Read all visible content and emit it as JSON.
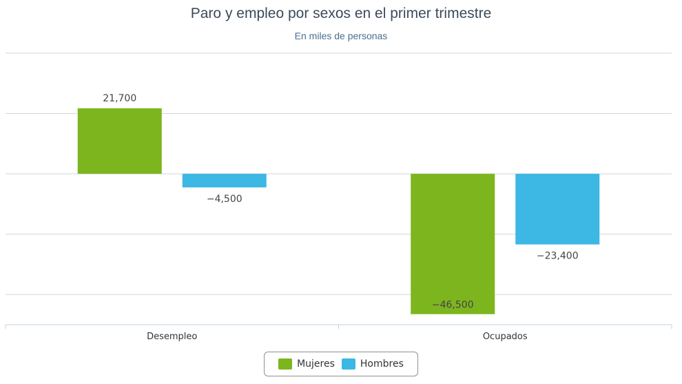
{
  "chart_data": {
    "type": "bar",
    "title": "Paro y empleo por sexos en el primer trimestre",
    "subtitle": "En miles de personas",
    "categories": [
      "Desempleo",
      "Ocupados"
    ],
    "series": [
      {
        "name": "Mujeres",
        "values": [
          21700,
          -46500
        ],
        "labels": [
          "21,700",
          "−46,500"
        ],
        "color": "#7db51e"
      },
      {
        "name": "Hombres",
        "values": [
          -4500,
          -23400
        ],
        "labels": [
          "−4,500",
          "−23,400"
        ],
        "color": "#3db7e4"
      }
    ],
    "ylim": [
      -50000,
      40000
    ],
    "grid": true,
    "y_tick_labels_shown": false,
    "legend_position": "bottom-center",
    "colors": {
      "gridline": "#cfd6de",
      "axis": "#c0d0e0",
      "data_label": "#444444",
      "category_label": "#333333"
    }
  }
}
